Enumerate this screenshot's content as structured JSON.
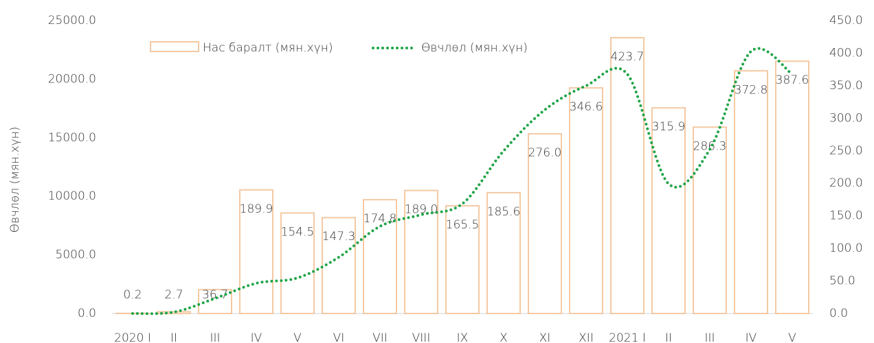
{
  "chart_data": {
    "type": "bar_line",
    "y_label": "Өвчлөл (мян.хүн)",
    "categories": [
      "2020 I",
      "II",
      "III",
      "IV",
      "V",
      "VI",
      "VII",
      "VIII",
      "IX",
      "X",
      "XI",
      "XII",
      "2021 I",
      "II",
      "III",
      "IV",
      "V"
    ],
    "series": [
      {
        "name": "Нас баралт (мян.хүн)",
        "type": "bar",
        "axis": "y2",
        "color": "#f4c9a3",
        "values": [
          0.2,
          2.7,
          36.7,
          189.9,
          154.5,
          147.3,
          174.8,
          189.0,
          165.5,
          185.6,
          276.0,
          346.6,
          423.7,
          315.9,
          286.3,
          372.8,
          387.6
        ],
        "value_labels": [
          "0.2",
          "2.7",
          "36.7",
          "189.9",
          "154.5",
          "147.3",
          "174.8",
          "189.0",
          "165.5",
          "185.6",
          "276.0",
          "346.6",
          "423.7",
          "315.9",
          "286.3",
          "372.8",
          "387.6"
        ]
      },
      {
        "name": "Өвчлөл (мян.хүн)",
        "type": "line",
        "axis": "y",
        "color": "#1ea446",
        "values": [
          0,
          120,
          1290,
          2580,
          3040,
          4800,
          7440,
          8430,
          9370,
          13880,
          17390,
          19440,
          20430,
          11070,
          14000,
          22370,
          20430
        ]
      }
    ],
    "ylim": [
      0,
      25000
    ],
    "yticks": [
      {
        "value": 0,
        "label": "0.0"
      },
      {
        "value": 5000,
        "label": "5000.0"
      },
      {
        "value": 10000,
        "label": "10000.0"
      },
      {
        "value": 15000,
        "label": "15000.0"
      },
      {
        "value": 20000,
        "label": "20000.0"
      },
      {
        "value": 25000,
        "label": "25000.0"
      }
    ],
    "y2lim": [
      0,
      450
    ],
    "y2ticks": [
      {
        "value": 0,
        "label": "0.0"
      },
      {
        "value": 50,
        "label": "50.0"
      },
      {
        "value": 100,
        "label": "100.0"
      },
      {
        "value": 150,
        "label": "150.0"
      },
      {
        "value": 200,
        "label": "200.0"
      },
      {
        "value": 250,
        "label": "250.0"
      },
      {
        "value": 300,
        "label": "300.0"
      },
      {
        "value": 350,
        "label": "350.0"
      },
      {
        "value": 400,
        "label": "400.0"
      },
      {
        "value": 450,
        "label": "450.0"
      }
    ],
    "legend": "top"
  }
}
